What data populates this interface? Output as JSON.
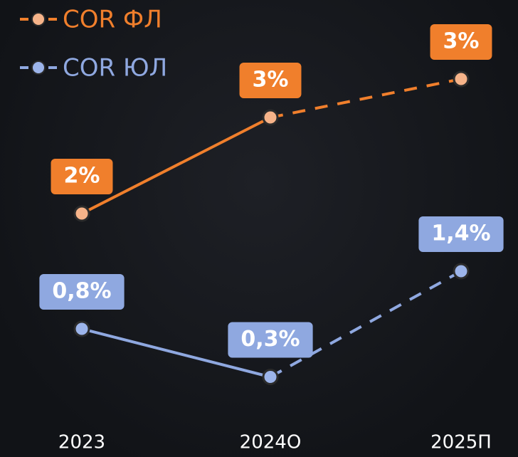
{
  "chart_data": {
    "type": "line",
    "categories": [
      "2023",
      "2024О",
      "2025П"
    ],
    "series": [
      {
        "name": "COR ФЛ",
        "color": "#f07f2c",
        "values": [
          2,
          3,
          3.4
        ],
        "value_labels": [
          "2%",
          "3%",
          "3%"
        ]
      },
      {
        "name": "COR ЮЛ",
        "color": "#8fa8e0",
        "values": [
          0.8,
          0.3,
          1.4
        ],
        "value_labels": [
          "0,8%",
          "0,3%",
          "1,4%"
        ]
      }
    ],
    "ylim": [
      0,
      4
    ],
    "dashed_from_index": 1
  }
}
